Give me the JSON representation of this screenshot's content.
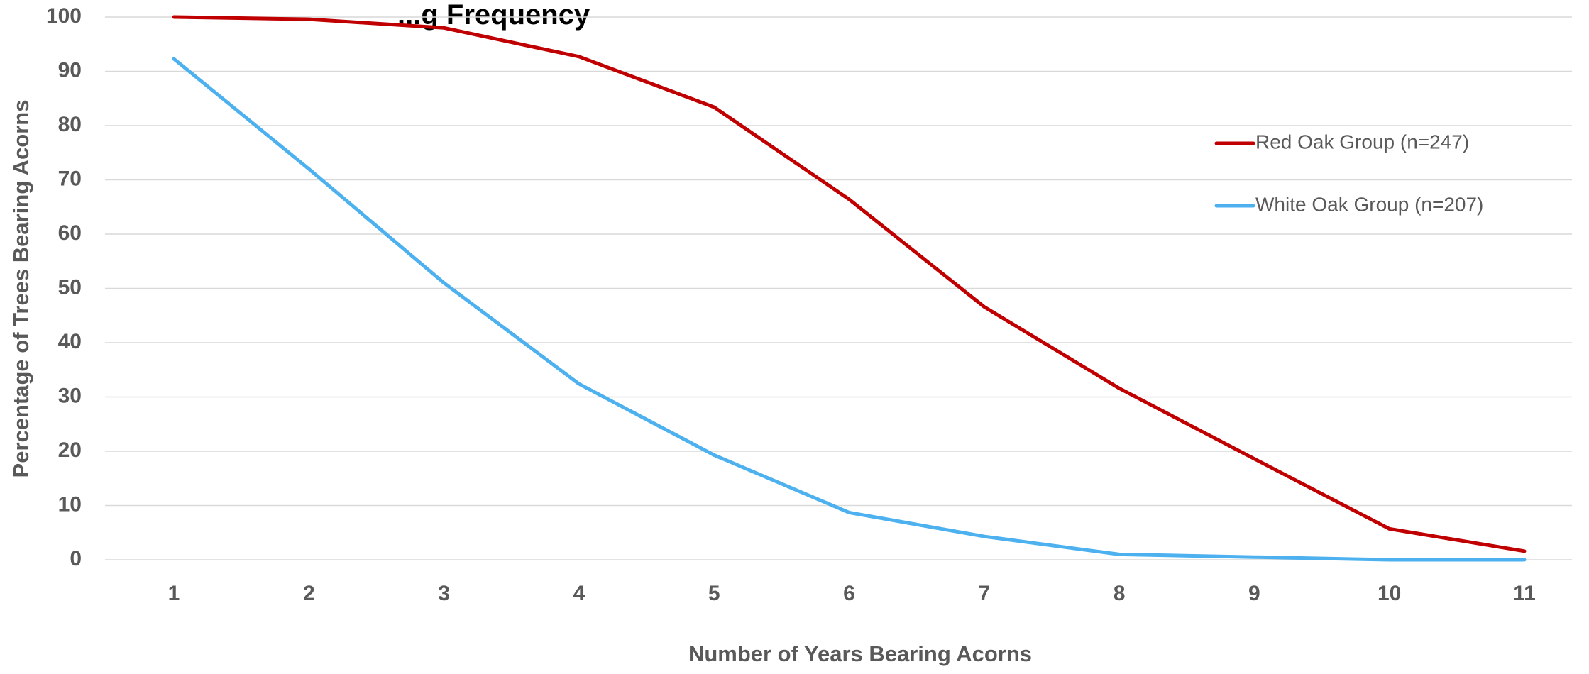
{
  "chart_data": {
    "type": "line",
    "title": "...g Frequency",
    "xlabel": "Number of Years Bearing Acorns",
    "ylabel": "Percentage of Trees Bearing Acorns",
    "x": [
      1,
      2,
      3,
      4,
      5,
      6,
      7,
      8,
      9,
      10,
      11
    ],
    "ylim": [
      0,
      100
    ],
    "yticks": [
      0,
      10,
      20,
      30,
      40,
      50,
      60,
      70,
      80,
      90,
      100
    ],
    "grid": true,
    "legend_position": "right",
    "series": [
      {
        "name": "Red Oak Group (n=247)",
        "color": "#c00000",
        "values": [
          100,
          99.6,
          98,
          92.7,
          83.4,
          66.4,
          46.6,
          31.6,
          18.6,
          5.7,
          1.6
        ]
      },
      {
        "name": "White Oak Group (n=207)",
        "color": "#4db1ef",
        "values": [
          92.3,
          72,
          51,
          32.4,
          19.3,
          8.7,
          4.3,
          1,
          0.5,
          0,
          0
        ]
      }
    ]
  }
}
